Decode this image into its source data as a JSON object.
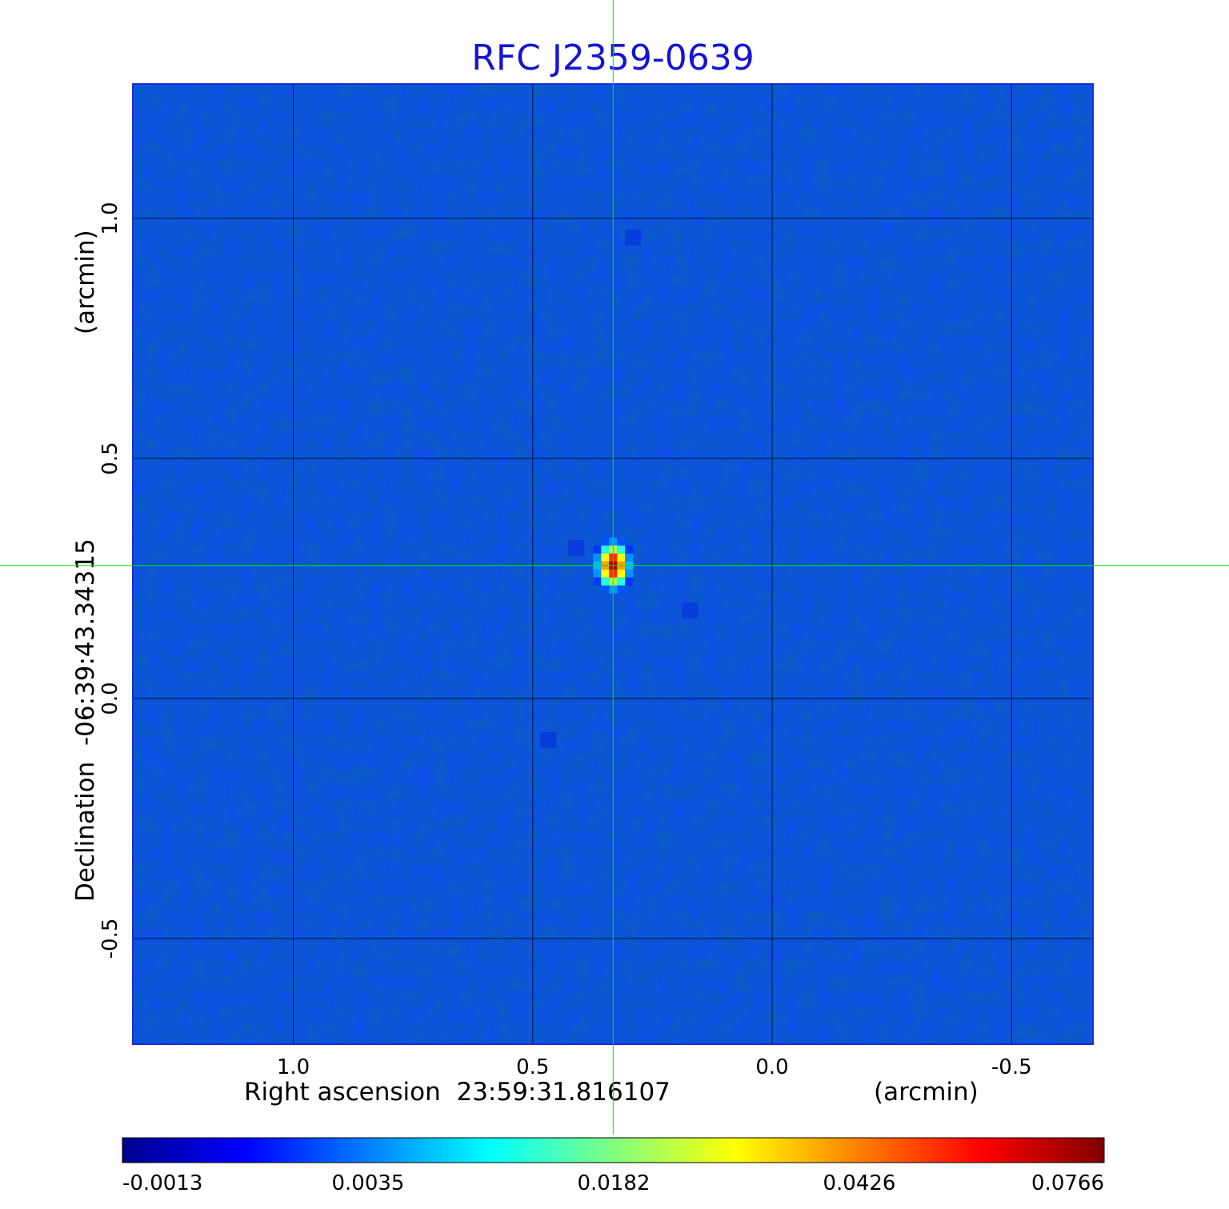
{
  "chart_data": {
    "type": "heatmap",
    "title": "RFC J2359-0639",
    "xlabel": "Right ascension  23:59:31.816107",
    "xunit": "(arcmin)",
    "ylabel": "Declination  -06:39:43.34315",
    "yunit": "(arcmin)",
    "xlim": [
      1.335,
      -0.67
    ],
    "ylim": [
      -0.72,
      1.28
    ],
    "x_ticks": [
      1.0,
      0.5,
      0.0,
      -0.5
    ],
    "x_tick_labels": [
      "1.0",
      "0.5",
      "0.0",
      "-0.5"
    ],
    "y_ticks": [
      1.0,
      0.5,
      0.0,
      -0.5
    ],
    "y_tick_labels": [
      "1.0",
      "0.5",
      "0.0",
      "-0.5"
    ],
    "grid": true,
    "crosshair": {
      "x": 0.332,
      "y": 0.277,
      "color": "#00e600"
    },
    "source_peak": {
      "x": 0.332,
      "y": 0.277,
      "value": 0.0766
    },
    "colormap": "jet",
    "colorbar_ticks": [
      "-0.0013",
      "0.0035",
      "0.0182",
      "0.0426",
      "0.0766"
    ],
    "value_range": [
      -0.0013,
      0.0766
    ]
  }
}
